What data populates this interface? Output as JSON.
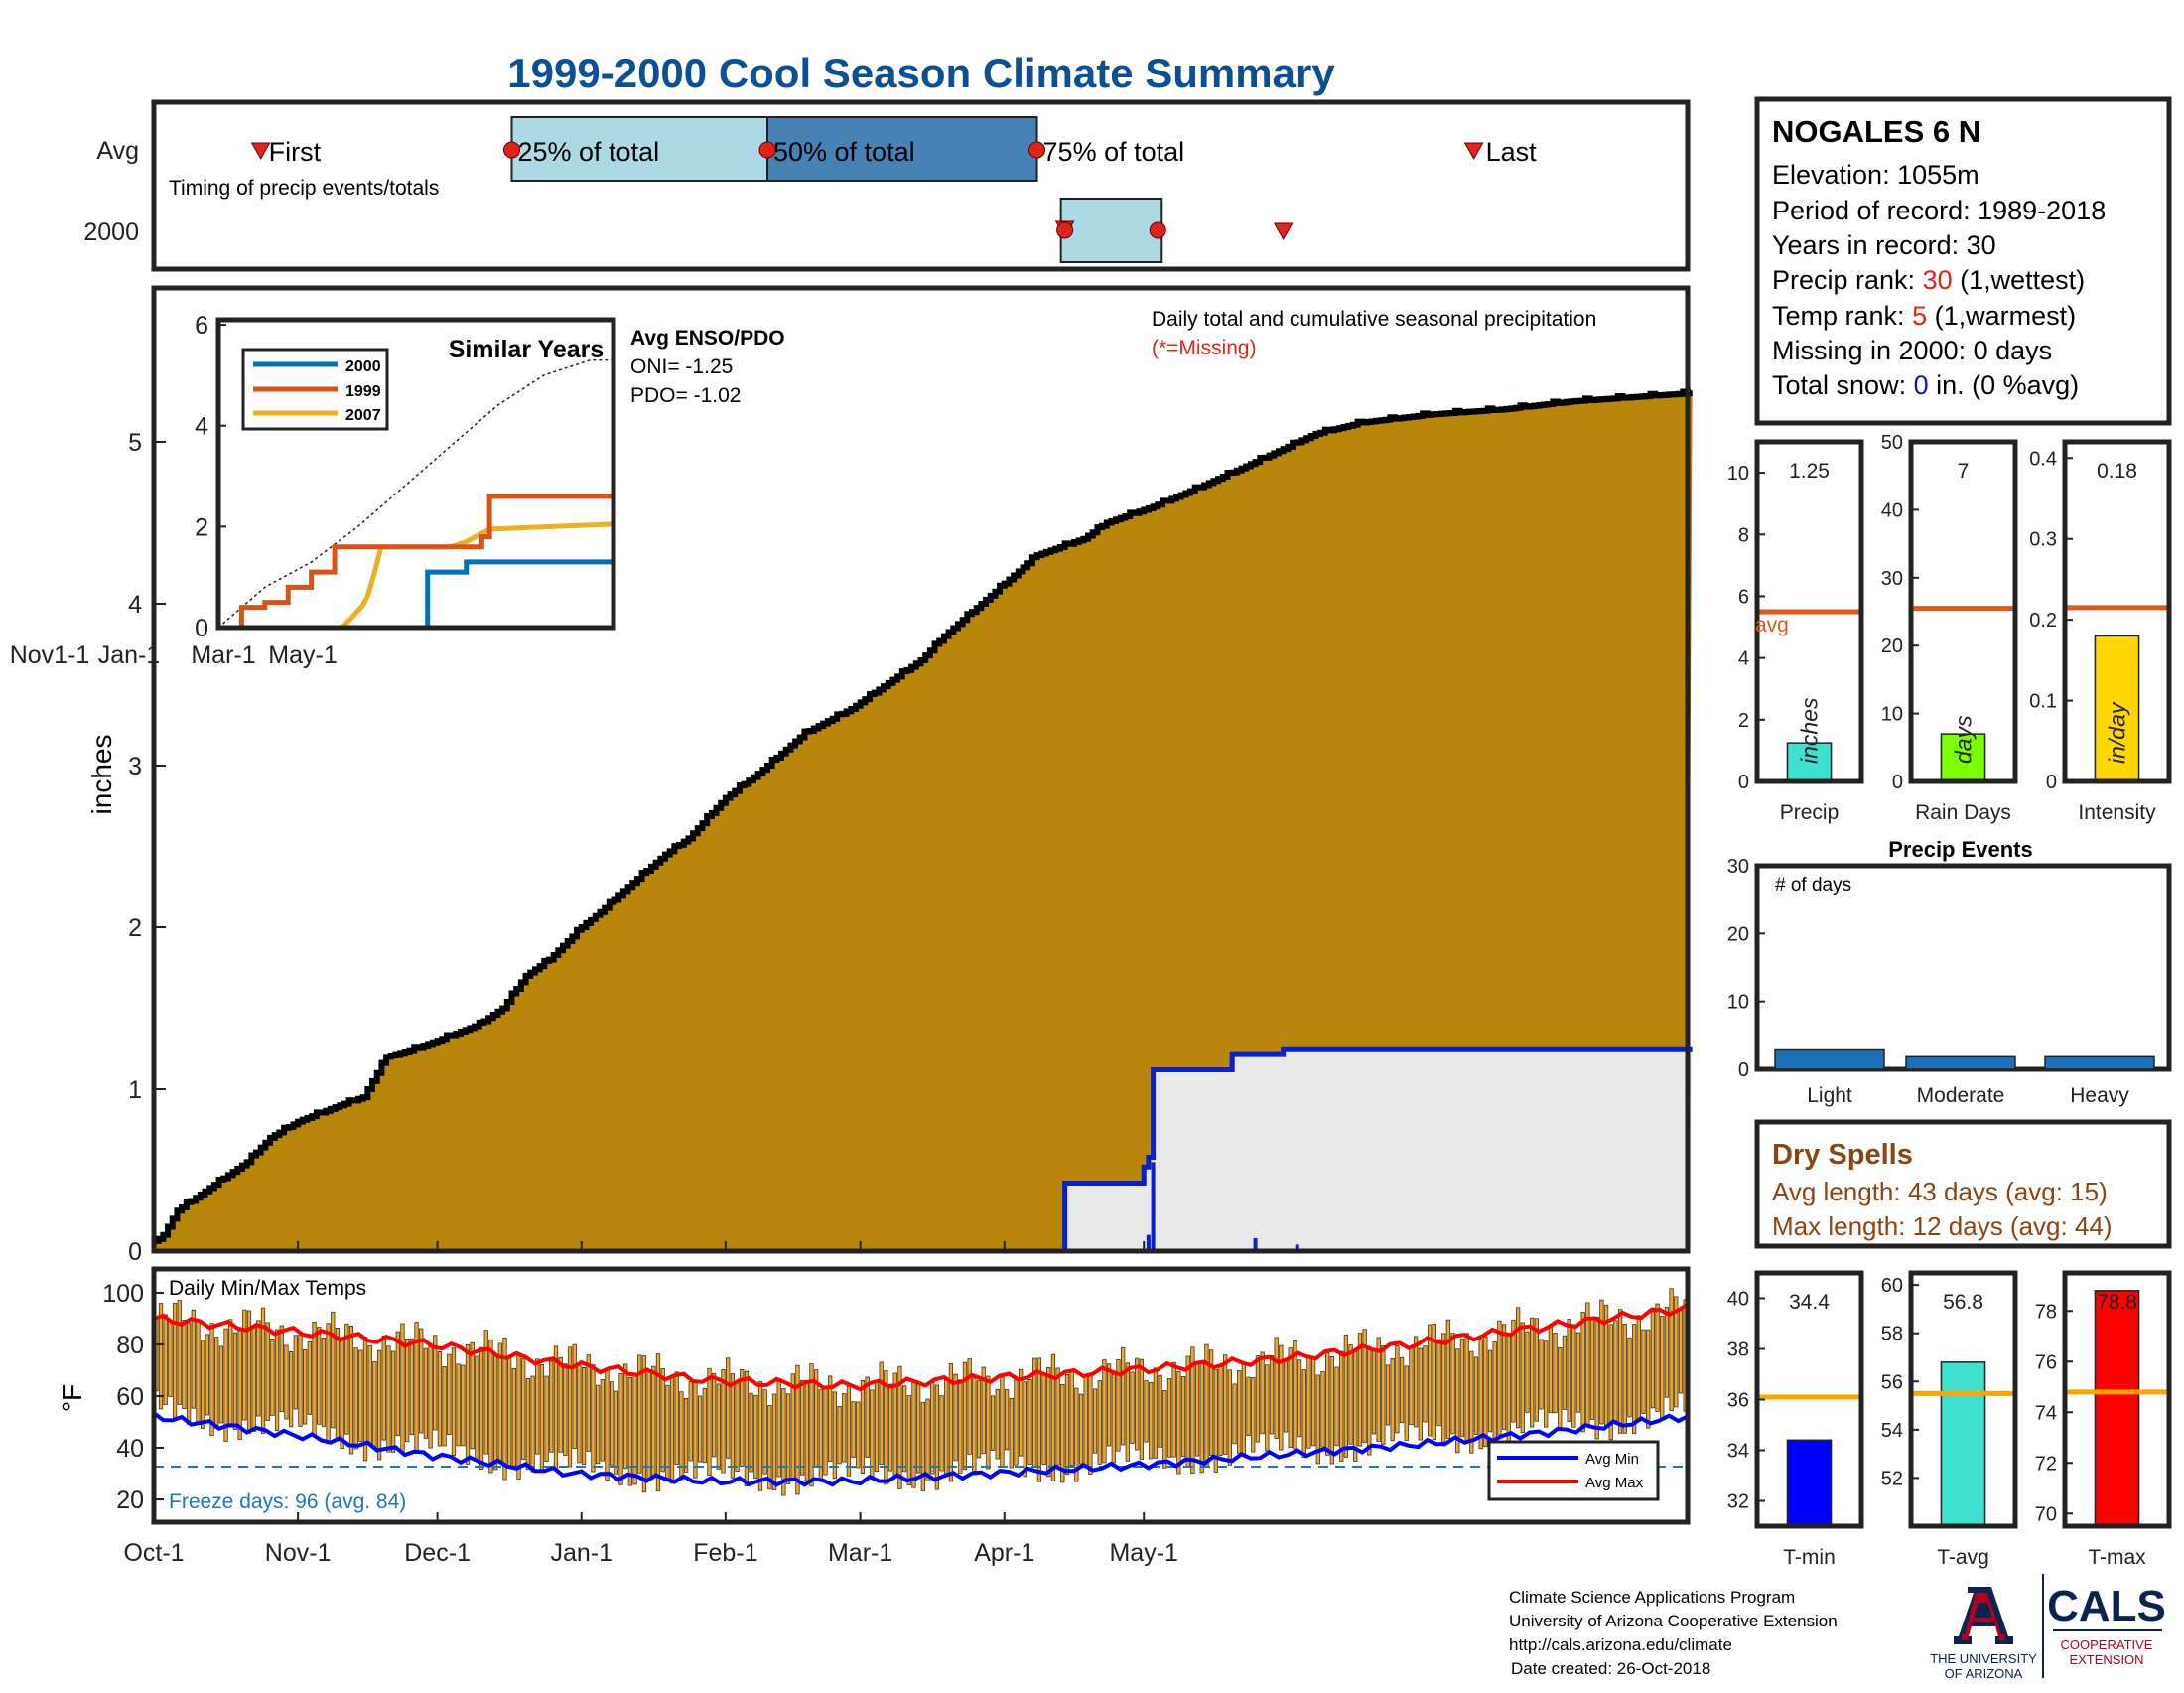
{
  "title": "1999-2000 Cool Season Climate Summary",
  "timing": {
    "row_avg": "Avg",
    "row_year": "2000",
    "subtitle": "Timing of precip events/totals",
    "first_label": "First",
    "last_label": "Last",
    "p25_label": "25% of total",
    "p50_label": "50% of total",
    "p75_label": "75% of total",
    "avg_markers_day": {
      "first": 23,
      "p25": 77,
      "p50": 132,
      "p75": 190,
      "last": 284
    },
    "year_markers_day": {
      "first": 196,
      "p25": 196,
      "p50": 216,
      "p75": 216,
      "last": 243
    }
  },
  "station": {
    "name": "NOGALES 6 N",
    "elevation_label": "Elevation: 1055m",
    "period_label": "Period of record: 1989-2018",
    "years_label": "Years in record: 30",
    "precip_rank_prefix": "Precip rank: ",
    "precip_rank_value": "30",
    "precip_rank_suffix": " (1,wettest)",
    "temp_rank_prefix": "Temp rank: ",
    "temp_rank_value": "5",
    "temp_rank_suffix": " (1,warmest)",
    "missing_label": "Missing in 2000: 0 days",
    "snow_prefix": "Total snow: ",
    "snow_value": "0",
    "snow_suffix": " in. (0 %avg)"
  },
  "main": {
    "ylabel": "inches",
    "header": "Daily total and cumulative seasonal precipitation",
    "missing_note": "(*=Missing)",
    "enso_title": "Avg ENSO/PDO",
    "oni_label": "ONI= -1.25",
    "pdo_label": "PDO= -1.02",
    "x_ticks": [
      "Oct-1",
      "Nov-1",
      "Dec-1",
      "Jan-1",
      "Feb-1",
      "Mar-1",
      "Apr-1",
      "May-1"
    ],
    "y_ticks": [
      "0",
      "1",
      "2",
      "3",
      "4",
      "5"
    ]
  },
  "inset": {
    "title": "Similar Years",
    "legend": [
      "2000",
      "1999",
      "2007"
    ],
    "x_ticks": [
      "Nov1-1",
      "Jan-1",
      "Mar-1",
      "May-1"
    ],
    "y_ticks": [
      "0",
      "2",
      "4",
      "6"
    ]
  },
  "temps": {
    "header": "Daily Min/Max Temps",
    "ylabel": "°F",
    "freeze_label": "Freeze days: 96 (avg. 84)",
    "legend_min": "Avg Min",
    "legend_max": "Avg Max",
    "y_ticks": [
      "20",
      "40",
      "60",
      "80",
      "100"
    ]
  },
  "bars_precip": {
    "precip": {
      "label": "Precip",
      "value_label": "1.25",
      "unit": "inches",
      "avg_label": "avg",
      "y_ticks": [
        "0",
        "2",
        "4",
        "6",
        "8",
        "10"
      ]
    },
    "rain_days": {
      "label": "Rain Days",
      "value_label": "7",
      "unit": "days",
      "y_ticks": [
        "0",
        "10",
        "20",
        "30",
        "40",
        "50"
      ]
    },
    "intensity": {
      "label": "Intensity",
      "value_label": "0.18",
      "unit": "in/day",
      "y_ticks": [
        "0",
        "0.1",
        "0.2",
        "0.3",
        "0.4"
      ]
    }
  },
  "events": {
    "title": "Precip Events",
    "note": "# of days",
    "y_ticks": [
      "0",
      "10",
      "20",
      "30"
    ],
    "categories": [
      "Light",
      "Moderate",
      "Heavy"
    ]
  },
  "dry": {
    "title": "Dry Spells",
    "avg_label": "Avg length: 43 days (avg: 15)",
    "max_label": "Max length: 12 days (avg: 44)"
  },
  "bars_temp": {
    "tmin": {
      "label": "T-min",
      "value_label": "34.4",
      "y_ticks": [
        "32",
        "34",
        "36",
        "38",
        "40"
      ]
    },
    "tavg": {
      "label": "T-avg",
      "value_label": "56.8",
      "y_ticks": [
        "52",
        "54",
        "56",
        "58",
        "60"
      ]
    },
    "tmax": {
      "label": "T-max",
      "value_label": "78.8",
      "y_ticks": [
        "70",
        "72",
        "74",
        "76",
        "78"
      ]
    }
  },
  "footer": {
    "line1": "Climate Science Applications Program",
    "line2": "University of Arizona Cooperative Extension",
    "line3": "http://cals.arizona.edu/climate",
    "line4": "Date created: 26-Oct-2018",
    "ua_line1": "THE UNIVERSITY",
    "ua_line2": "OF ARIZONA",
    "cals": "CALS",
    "cals_line1": "COOPERATIVE",
    "cals_line2": "EXTENSION"
  },
  "colors": {
    "title_blue": "#0d4f94",
    "avg_cum_fill": "#b8860b",
    "year_cum_fill": "#e8e8e8",
    "year_line": "#0a1ed6",
    "rank_red": "#e2231a",
    "snow_blue": "#1111cc",
    "dry_brown": "#8b4513",
    "precip_bar": "#40e0d0",
    "rain_days_bar": "#7cfc00",
    "intensity_bar": "#ffd700",
    "avg_line": "#dd5a1e",
    "tmin_bar": "#0000ff",
    "tavg_bar": "#40e0d0",
    "tmax_bar": "#ff0000",
    "temp_avg_line": "#ffa500",
    "events_bar": "#1f6fb5",
    "daily_temp_bar": "#f5a623",
    "ua_red": "#ab0520",
    "ua_navy": "#0c234b"
  },
  "chart_data": [
    {
      "type": "area",
      "title": "Daily total and cumulative seasonal precipitation",
      "ylabel": "inches",
      "ylim": [
        0,
        6
      ],
      "x_unit": "day of season (0 = Oct-1)",
      "series": [
        {
          "name": "Avg",
          "x": [
            0,
            2,
            5,
            10,
            15,
            20,
            25,
            31,
            40,
            45,
            50,
            56,
            61,
            70,
            75,
            80,
            85,
            92,
            100,
            110,
            115,
            123,
            130,
            140,
            150,
            160,
            165,
            170,
            180,
            190,
            200,
            205,
            210,
            215,
            225,
            235,
            250,
            260,
            275,
            290,
            305,
            330
          ],
          "values": [
            0.05,
            0.1,
            0.25,
            0.35,
            0.45,
            0.55,
            0.7,
            0.8,
            0.9,
            0.95,
            1.2,
            1.25,
            1.3,
            1.4,
            1.5,
            1.7,
            1.8,
            2.0,
            2.2,
            2.45,
            2.55,
            2.8,
            2.95,
            3.2,
            3.35,
            3.55,
            3.65,
            3.8,
            4.05,
            4.3,
            4.4,
            4.5,
            4.55,
            4.6,
            4.72,
            4.85,
            5.05,
            5.12,
            5.17,
            5.2,
            5.25,
            5.3
          ]
        },
        {
          "name": "2000",
          "x": [
            0,
            195,
            196,
            211,
            213,
            214,
            215,
            231,
            232,
            242,
            243,
            330
          ],
          "values": [
            0,
            0,
            0.42,
            0.42,
            0.52,
            0.58,
            1.12,
            1.12,
            1.22,
            1.22,
            1.25,
            1.25
          ]
        }
      ]
    },
    {
      "type": "line",
      "title": "Similar Years",
      "ylim": [
        0,
        6
      ],
      "series": [
        {
          "name": "2000",
          "x": [
            0,
            130,
            135,
            155,
            160,
            255
          ],
          "values": [
            0,
            0,
            1.1,
            1.1,
            1.3,
            1.3
          ]
        },
        {
          "name": "1999",
          "x": [
            0,
            15,
            30,
            45,
            60,
            75,
            140,
            170,
            175,
            255
          ],
          "values": [
            0,
            0.4,
            0.5,
            0.8,
            1.1,
            1.6,
            1.6,
            1.8,
            2.6,
            2.6
          ]
        },
        {
          "name": "2007",
          "x": [
            0,
            80,
            95,
            100,
            105,
            150,
            160,
            175,
            255
          ],
          "values": [
            0,
            0,
            0.5,
            1.0,
            1.6,
            1.6,
            1.7,
            1.95,
            2.05
          ]
        },
        {
          "name": "Avg",
          "x": [
            0,
            30,
            60,
            90,
            120,
            150,
            180,
            210,
            240,
            255
          ],
          "values": [
            0,
            0.8,
            1.3,
            2.0,
            2.8,
            3.6,
            4.4,
            5.0,
            5.3,
            5.3
          ]
        }
      ]
    },
    {
      "type": "line",
      "title": "Daily Min/Max Temps",
      "ylabel": "°F",
      "ylim": [
        10,
        105
      ],
      "series": [
        {
          "name": "Avg Max",
          "x": [
            0,
            30,
            60,
            90,
            120,
            150,
            180,
            210,
            240,
            270,
            300,
            330
          ],
          "values": [
            90,
            85,
            80,
            72,
            66,
            64,
            67,
            70,
            74,
            80,
            87,
            94
          ]
        },
        {
          "name": "Avg Min",
          "x": [
            0,
            30,
            60,
            90,
            120,
            150,
            180,
            210,
            240,
            270,
            300,
            330
          ],
          "values": [
            52,
            45,
            37,
            30,
            27,
            27,
            30,
            33,
            37,
            41,
            46,
            52
          ]
        }
      ]
    },
    {
      "type": "bar",
      "title": "Precip Events",
      "categories": [
        "Light",
        "Moderate",
        "Heavy"
      ],
      "values": [
        3,
        2,
        2
      ],
      "ylim": [
        0,
        30
      ]
    },
    {
      "type": "bar",
      "categories": [
        "Precip",
        "Rain Days",
        "Intensity"
      ],
      "series": [
        {
          "name": "2000",
          "values": [
            1.25,
            7,
            0.18
          ]
        },
        {
          "name": "avg",
          "values": [
            5.5,
            25.5,
            0.215
          ]
        }
      ]
    },
    {
      "type": "bar",
      "categories": [
        "T-min",
        "T-avg",
        "T-max"
      ],
      "series": [
        {
          "name": "2000",
          "values": [
            34.4,
            56.8,
            78.8
          ]
        },
        {
          "name": "avg",
          "values": [
            36.1,
            55.5,
            74.8
          ]
        }
      ]
    }
  ]
}
